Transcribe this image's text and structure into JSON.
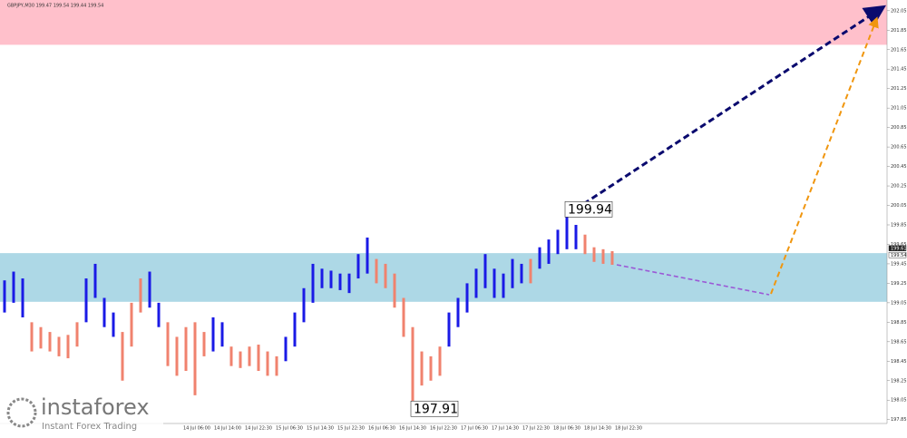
{
  "chart_data": {
    "type": "range-bar",
    "title": "GBPJPY,M30  199.47 199.54 199.44 199.54",
    "ylim": [
      197.81,
      202.16
    ],
    "yticks": [
      202.05,
      201.85,
      201.65,
      201.45,
      201.25,
      201.05,
      200.85,
      200.65,
      200.45,
      200.25,
      200.05,
      199.85,
      199.65,
      199.45,
      199.25,
      199.05,
      198.85,
      198.65,
      198.45,
      198.25,
      198.05,
      197.85
    ],
    "x_labels": [
      "14 Jul 06:00",
      "14 Jul 14:00",
      "14 Jul 22:30",
      "15 Jul 06:30",
      "15 Jul 14:30",
      "15 Jul 22:30",
      "16 Jul 06:30",
      "16 Jul 14:30",
      "16 Jul 22:30",
      "17 Jul 06:30",
      "17 Jul 14:30",
      "17 Jul 22:30",
      "18 Jul 06:30",
      "18 Jul 14:30",
      "18 Jul 22:30"
    ],
    "zones": [
      {
        "color": "#ffc0cb",
        "range": [
          201.7,
          202.16
        ]
      },
      {
        "color": "#add8e6",
        "range": [
          199.06,
          199.56
        ]
      }
    ],
    "high": [
      199.28,
      199.37,
      199.3,
      198.85,
      198.8,
      198.75,
      198.7,
      198.72,
      198.85,
      199.3,
      199.45,
      199.1,
      198.95,
      198.75,
      199.05,
      199.3,
      199.37,
      199.05,
      198.85,
      198.7,
      198.8,
      198.85,
      198.75,
      198.9,
      198.85,
      198.6,
      198.55,
      198.6,
      198.62,
      198.55,
      198.5,
      198.7,
      198.95,
      199.2,
      199.45,
      199.4,
      199.38,
      199.35,
      199.35,
      199.55,
      199.72,
      199.5,
      199.45,
      199.35,
      199.1,
      198.8,
      198.55,
      198.5,
      198.6,
      198.95,
      199.1,
      199.25,
      199.4,
      199.55,
      199.4,
      199.35,
      199.5,
      199.45,
      199.5,
      199.62,
      199.7,
      199.8,
      199.94,
      199.85,
      199.75,
      199.62,
      199.6,
      199.58
    ],
    "low": [
      198.95,
      199.05,
      198.9,
      198.55,
      198.58,
      198.55,
      198.5,
      198.48,
      198.6,
      198.85,
      199.1,
      198.8,
      198.7,
      198.25,
      198.6,
      198.95,
      199.0,
      198.8,
      198.4,
      198.3,
      198.35,
      198.1,
      198.5,
      198.55,
      198.6,
      198.4,
      198.38,
      198.4,
      198.35,
      198.3,
      198.3,
      198.45,
      198.6,
      198.85,
      199.05,
      199.2,
      199.2,
      199.18,
      199.15,
      199.3,
      199.35,
      199.25,
      199.2,
      199.0,
      198.7,
      197.91,
      198.2,
      198.25,
      198.3,
      198.6,
      198.8,
      198.95,
      199.1,
      199.2,
      199.1,
      199.1,
      199.2,
      199.25,
      199.25,
      199.4,
      199.45,
      199.55,
      199.6,
      199.6,
      199.55,
      199.47,
      199.45,
      199.44
    ],
    "colors": [
      "#1a1ae6",
      "#1a1ae6",
      "#1a1ae6",
      "#f0826e",
      "#f0826e",
      "#f0826e",
      "#f0826e",
      "#f0826e",
      "#f0826e",
      "#1a1ae6",
      "#1a1ae6",
      "#1a1ae6",
      "#1a1ae6",
      "#f0826e",
      "#f0826e",
      "#f0826e",
      "#1a1ae6",
      "#1a1ae6",
      "#f0826e",
      "#f0826e",
      "#f0826e",
      "#f0826e",
      "#f0826e",
      "#1a1ae6",
      "#1a1ae6",
      "#f0826e",
      "#f0826e",
      "#f0826e",
      "#f0826e",
      "#f0826e",
      "#f0826e",
      "#1a1ae6",
      "#1a1ae6",
      "#1a1ae6",
      "#1a1ae6",
      "#1a1ae6",
      "#1a1ae6",
      "#1a1ae6",
      "#1a1ae6",
      "#1a1ae6",
      "#1a1ae6",
      "#f0826e",
      "#f0826e",
      "#f0826e",
      "#f0826e",
      "#f0826e",
      "#f0826e",
      "#f0826e",
      "#f0826e",
      "#1a1ae6",
      "#1a1ae6",
      "#1a1ae6",
      "#1a1ae6",
      "#1a1ae6",
      "#1a1ae6",
      "#1a1ae6",
      "#1a1ae6",
      "#1a1ae6",
      "#f0826e",
      "#1a1ae6",
      "#1a1ae6",
      "#1a1ae6",
      "#1a1ae6",
      "#1a1ae6",
      "#f0826e",
      "#f0826e",
      "#f0826e",
      "#f0826e"
    ],
    "annotations": [
      199.94,
      197.91
    ],
    "price_tags": [
      199.61,
      199.54
    ],
    "logo": {
      "name": "instaforex",
      "tagline": "Instant Forex Trading"
    }
  }
}
